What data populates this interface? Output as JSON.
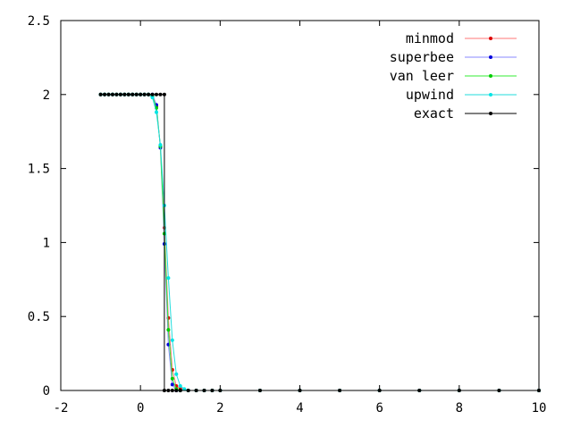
{
  "chart_data": {
    "type": "line",
    "title": "",
    "xlabel": "",
    "ylabel": "",
    "xlim": [
      -2,
      10
    ],
    "ylim": [
      0,
      2.5
    ],
    "xticks": [
      -2,
      0,
      2,
      4,
      6,
      8,
      10
    ],
    "xtick_labels": [
      "-2",
      "0",
      "2",
      "4",
      "6",
      "8",
      "10"
    ],
    "yticks": [
      0,
      0.5,
      1,
      1.5,
      2,
      2.5
    ],
    "ytick_labels": [
      "0",
      "0.5",
      "1",
      "1.5",
      "2",
      "2.5"
    ],
    "grid": false,
    "legend": "top-right",
    "series": [
      {
        "name": "minmod",
        "color": "#ff7777",
        "marker_color": "#dd0000",
        "x": [
          -1.0,
          -0.9,
          -0.8,
          -0.7,
          -0.6,
          -0.5,
          -0.4,
          -0.3,
          -0.2,
          -0.1,
          0.0,
          0.1,
          0.2,
          0.3,
          0.4,
          0.5,
          0.6,
          0.7,
          0.8,
          0.9,
          1.0,
          1.2,
          1.4,
          1.6,
          1.8,
          2.0,
          3.0,
          4.0,
          5.0,
          6.0,
          7.0,
          8.0,
          9.0,
          10.0
        ],
        "y": [
          2.0,
          2.0,
          2.0,
          2.0,
          2.0,
          2.0,
          2.0,
          2.0,
          2.0,
          2.0,
          2.0,
          2.0,
          2.0,
          1.99,
          1.92,
          1.65,
          1.1,
          0.49,
          0.14,
          0.03,
          0.01,
          0.0,
          0.0,
          0.0,
          0.0,
          0.0,
          0.0,
          0.0,
          0.0,
          0.0,
          0.0,
          0.0,
          0.0,
          0.0
        ]
      },
      {
        "name": "superbee",
        "color": "#8888ff",
        "marker_color": "#0000dd",
        "x": [
          -1.0,
          -0.9,
          -0.8,
          -0.7,
          -0.6,
          -0.5,
          -0.4,
          -0.3,
          -0.2,
          -0.1,
          0.0,
          0.1,
          0.2,
          0.3,
          0.4,
          0.5,
          0.6,
          0.7,
          0.8,
          0.9,
          1.0,
          1.2,
          1.4,
          1.6,
          1.8,
          2.0,
          3.0,
          4.0,
          5.0,
          6.0,
          7.0,
          8.0,
          9.0,
          10.0
        ],
        "y": [
          2.0,
          2.0,
          2.0,
          2.0,
          2.0,
          2.0,
          2.0,
          2.0,
          2.0,
          2.0,
          2.0,
          2.0,
          2.0,
          2.0,
          1.93,
          1.64,
          0.99,
          0.31,
          0.04,
          0.0,
          0.0,
          0.0,
          0.0,
          0.0,
          0.0,
          0.0,
          0.0,
          0.0,
          0.0,
          0.0,
          0.0,
          0.0,
          0.0,
          0.0
        ]
      },
      {
        "name": "van leer",
        "color": "#33ee33",
        "marker_color": "#00cc00",
        "x": [
          -1.0,
          -0.9,
          -0.8,
          -0.7,
          -0.6,
          -0.5,
          -0.4,
          -0.3,
          -0.2,
          -0.1,
          0.0,
          0.1,
          0.2,
          0.3,
          0.4,
          0.5,
          0.6,
          0.7,
          0.8,
          0.9,
          1.0,
          1.2,
          1.4,
          1.6,
          1.8,
          2.0,
          3.0,
          4.0,
          5.0,
          6.0,
          7.0,
          8.0,
          9.0,
          10.0
        ],
        "y": [
          2.0,
          2.0,
          2.0,
          2.0,
          2.0,
          2.0,
          2.0,
          2.0,
          2.0,
          2.0,
          2.0,
          2.0,
          2.0,
          1.99,
          1.91,
          1.65,
          1.06,
          0.41,
          0.08,
          0.01,
          0.0,
          0.0,
          0.0,
          0.0,
          0.0,
          0.0,
          0.0,
          0.0,
          0.0,
          0.0,
          0.0,
          0.0,
          0.0,
          0.0
        ]
      },
      {
        "name": "upwind",
        "color": "#22dddd",
        "marker_color": "#00e5e5",
        "x": [
          -1.0,
          -0.9,
          -0.8,
          -0.7,
          -0.6,
          -0.5,
          -0.4,
          -0.3,
          -0.2,
          -0.1,
          0.0,
          0.1,
          0.2,
          0.3,
          0.4,
          0.5,
          0.6,
          0.7,
          0.8,
          0.9,
          1.0,
          1.1,
          1.2,
          1.4,
          1.6,
          1.8,
          2.0,
          3.0,
          4.0,
          5.0,
          6.0,
          7.0,
          8.0,
          9.0,
          10.0
        ],
        "y": [
          2.0,
          2.0,
          2.0,
          2.0,
          2.0,
          2.0,
          2.0,
          2.0,
          2.0,
          2.0,
          2.0,
          2.0,
          2.0,
          1.98,
          1.88,
          1.66,
          1.25,
          0.76,
          0.34,
          0.11,
          0.03,
          0.01,
          0.0,
          0.0,
          0.0,
          0.0,
          0.0,
          0.0,
          0.0,
          0.0,
          0.0,
          0.0,
          0.0,
          0.0,
          0.0
        ]
      },
      {
        "name": "exact",
        "color": "#000000",
        "marker_color": "#000000",
        "x": [
          -1.0,
          -0.9,
          -0.8,
          -0.7,
          -0.6,
          -0.5,
          -0.4,
          -0.3,
          -0.2,
          -0.1,
          0.0,
          0.1,
          0.2,
          0.3,
          0.4,
          0.5,
          0.6,
          0.6,
          0.7,
          0.8,
          0.9,
          1.0,
          1.2,
          1.4,
          1.6,
          1.8,
          2.0,
          3.0,
          4.0,
          5.0,
          6.0,
          7.0,
          8.0,
          9.0,
          10.0
        ],
        "y": [
          2.0,
          2.0,
          2.0,
          2.0,
          2.0,
          2.0,
          2.0,
          2.0,
          2.0,
          2.0,
          2.0,
          2.0,
          2.0,
          2.0,
          2.0,
          2.0,
          2.0,
          0.0,
          0.0,
          0.0,
          0.0,
          0.0,
          0.0,
          0.0,
          0.0,
          0.0,
          0.0,
          0.0,
          0.0,
          0.0,
          0.0,
          0.0,
          0.0,
          0.0,
          0.0
        ]
      }
    ]
  }
}
